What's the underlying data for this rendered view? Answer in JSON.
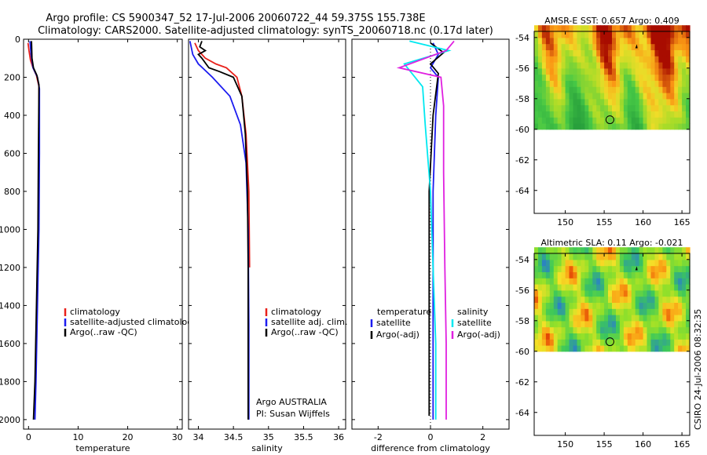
{
  "header": {
    "line1": "Argo profile: CS 5900347_52 17-Jul-2006 20060722_44 59.375S 155.738E",
    "line2": "Climatology: CARS2000. Satellite-adjusted climatology: synTS_20060718.nc (0.17d later)"
  },
  "footer": {
    "stamp": "CSIRO 24-Jul-2006 08:32:35",
    "float_owner": "Argo AUSTRALIA",
    "pi": "PI: Susan Wijffels"
  },
  "colors": {
    "climatology": "#e8201a",
    "satellite": "#1c1cf0",
    "argo": "#000000",
    "cyan": "#00e8f0",
    "magenta": "#e020e0",
    "land": "#a80c00"
  },
  "chart_data": [
    {
      "type": "line",
      "xlabel": "temperature",
      "ylim": [
        2050,
        0
      ],
      "xlim": [
        -1,
        31
      ],
      "xticks": [
        0,
        10,
        20,
        30
      ],
      "yticks": [
        0,
        200,
        400,
        600,
        800,
        1000,
        1200,
        1400,
        1600,
        1800,
        2000
      ],
      "legend": {
        "position": "lower-left",
        "entries": [
          "climatology",
          "satellite-adjusted climatology",
          "Argo(..raw -QC)"
        ]
      },
      "series": [
        {
          "name": "climatology",
          "color": "#e8201a",
          "points": [
            [
              -0.1,
              20
            ],
            [
              0.1,
              60
            ],
            [
              0.4,
              110
            ],
            [
              0.9,
              150
            ],
            [
              1.6,
              190
            ],
            [
              2.1,
              250
            ],
            [
              2.1,
              400
            ]
          ]
        },
        {
          "name": "satellite-adjusted climatology",
          "color": "#1c1cf0",
          "points": [
            [
              0.3,
              10
            ],
            [
              0.5,
              80
            ],
            [
              0.9,
              150
            ],
            [
              1.8,
              200
            ],
            [
              2.2,
              260
            ],
            [
              2.2,
              600
            ],
            [
              2.1,
              1000
            ],
            [
              1.8,
              1400
            ],
            [
              1.5,
              1800
            ],
            [
              1.3,
              2000
            ]
          ]
        },
        {
          "name": "Argo(..raw -QC)",
          "color": "#000000",
          "points": [
            [
              0.6,
              10
            ],
            [
              0.7,
              100
            ],
            [
              1.0,
              150
            ],
            [
              1.7,
              190
            ],
            [
              2.1,
              240
            ],
            [
              2.0,
              600
            ],
            [
              1.9,
              1000
            ],
            [
              1.6,
              1400
            ],
            [
              1.3,
              1800
            ],
            [
              1.0,
              2000
            ]
          ]
        }
      ]
    },
    {
      "type": "line",
      "xlabel": "salinity",
      "ylim": [
        2050,
        0
      ],
      "xlim": [
        33.86,
        36.1
      ],
      "xticks": [
        34,
        34.5,
        35,
        35.5,
        36
      ],
      "yticks": [
        0,
        200,
        400,
        600,
        800,
        1000,
        1200,
        1400,
        1600,
        1800,
        2000
      ],
      "legend": {
        "position": "lower-left",
        "entries": [
          "climatology",
          "satellite adj. clim.",
          "Argo(..raw -QC)"
        ]
      },
      "series": [
        {
          "name": "climatology",
          "color": "#e8201a",
          "points": [
            [
              33.95,
              20
            ],
            [
              34.0,
              60
            ],
            [
              34.1,
              100
            ],
            [
              34.25,
              130
            ],
            [
              34.4,
              150
            ],
            [
              34.55,
              200
            ],
            [
              34.62,
              300
            ],
            [
              34.68,
              500
            ],
            [
              34.72,
              800
            ],
            [
              34.73,
              1200
            ]
          ]
        },
        {
          "name": "satellite adj. clim.",
          "color": "#1c1cf0",
          "points": [
            [
              33.88,
              10
            ],
            [
              33.92,
              80
            ],
            [
              34.0,
              130
            ],
            [
              34.2,
              200
            ],
            [
              34.45,
              300
            ],
            [
              34.6,
              450
            ],
            [
              34.68,
              650
            ],
            [
              34.71,
              1000
            ],
            [
              34.72,
              1500
            ],
            [
              34.72,
              2000
            ]
          ]
        },
        {
          "name": "Argo(..raw -QC)",
          "color": "#000000",
          "points": [
            [
              34.05,
              10
            ],
            [
              34.02,
              40
            ],
            [
              34.1,
              60
            ],
            [
              34.0,
              80
            ],
            [
              34.05,
              100
            ],
            [
              34.15,
              150
            ],
            [
              34.3,
              170
            ],
            [
              34.5,
              200
            ],
            [
              34.62,
              300
            ],
            [
              34.67,
              500
            ],
            [
              34.7,
              800
            ],
            [
              34.71,
              1200
            ],
            [
              34.71,
              1600
            ],
            [
              34.71,
              2000
            ]
          ]
        }
      ]
    },
    {
      "type": "line",
      "xlabel": "difference from climatology",
      "ylim": [
        2050,
        0
      ],
      "xlim": [
        -3,
        3
      ],
      "xticks": [
        -2,
        0,
        2
      ],
      "yticks": [
        0,
        200,
        400,
        600,
        800,
        1000,
        1200,
        1400,
        1600,
        1800,
        2000
      ],
      "legend": {
        "position": "lower-left",
        "col1_title": "temperature",
        "col2_title": "salinity",
        "entries": [
          "satellite",
          "Argo(-adj)",
          "satellite",
          "Argo(-adj)"
        ]
      },
      "series": [
        {
          "name": "temperature satellite",
          "color": "#1c1cf0",
          "points": [
            [
              0.1,
              20
            ],
            [
              0.3,
              80
            ],
            [
              0.0,
              150
            ],
            [
              0.3,
              200
            ],
            [
              0.2,
              400
            ],
            [
              0.1,
              800
            ],
            [
              0.1,
              1200
            ],
            [
              0.1,
              1600
            ],
            [
              0.1,
              2000
            ]
          ]
        },
        {
          "name": "temperature Argo(-adj)",
          "color": "#000000",
          "points": [
            [
              0.0,
              20
            ],
            [
              0.5,
              70
            ],
            [
              0.0,
              130
            ],
            [
              0.3,
              180
            ],
            [
              0.1,
              400
            ],
            [
              -0.05,
              800
            ],
            [
              -0.05,
              1200
            ],
            [
              -0.05,
              1600
            ],
            [
              -0.05,
              1980
            ]
          ]
        },
        {
          "name": "salinity satellite",
          "color": "#00e8f0",
          "points": [
            [
              -0.8,
              10
            ],
            [
              0.7,
              60
            ],
            [
              -1.0,
              130
            ],
            [
              -0.3,
              250
            ],
            [
              -0.2,
              450
            ],
            [
              0.0,
              800
            ],
            [
              0.1,
              1200
            ],
            [
              0.2,
              1600
            ],
            [
              0.2,
              2000
            ]
          ]
        },
        {
          "name": "salinity Argo(-adj)",
          "color": "#e020e0",
          "points": [
            [
              0.9,
              10
            ],
            [
              0.6,
              60
            ],
            [
              -1.2,
              150
            ],
            [
              0.4,
              200
            ],
            [
              0.5,
              350
            ],
            [
              0.5,
              700
            ],
            [
              0.55,
              1200
            ],
            [
              0.6,
              1600
            ],
            [
              0.6,
              2000
            ]
          ]
        }
      ]
    },
    {
      "type": "heatmap",
      "title": "AMSR-E SST: 0.657  Argo: 0.409",
      "xlim": [
        146,
        166
      ],
      "ylim": [
        -65.5,
        -53.6
      ],
      "xticks": [
        150,
        155,
        160,
        165
      ],
      "yticks": [
        -54,
        -56,
        -58,
        -60,
        -62,
        -64
      ],
      "data_lat_min": -60,
      "profile_location": [
        155.738,
        -59.375
      ]
    },
    {
      "type": "heatmap",
      "title": "Altimetric SLA: 0.11  Argo: -0.021",
      "xlim": [
        146,
        166
      ],
      "ylim": [
        -65.5,
        -53.6
      ],
      "xticks": [
        150,
        155,
        160,
        165
      ],
      "yticks": [
        -54,
        -56,
        -58,
        -60,
        -62,
        -64
      ],
      "data_lat_min": -60,
      "profile_location": [
        155.738,
        -59.375
      ]
    }
  ]
}
